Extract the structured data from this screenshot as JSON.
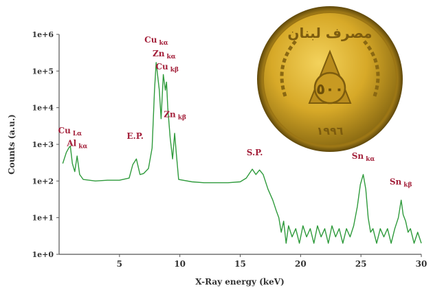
{
  "chart_data": {
    "type": "line",
    "title": "",
    "xlabel": "X-Ray energy (keV)",
    "ylabel": "Counts (a.u.)",
    "xlim": [
      0,
      30
    ],
    "ylim": [
      1,
      1000000
    ],
    "yscale": "log",
    "xticks": [
      5,
      10,
      15,
      20,
      25,
      30
    ],
    "yticks": [
      {
        "value": 1,
        "label": "1e+0"
      },
      {
        "value": 10,
        "label": "1e+1"
      },
      {
        "value": 100,
        "label": "1e+2"
      },
      {
        "value": 1000,
        "label": "1e+3"
      },
      {
        "value": 10000,
        "label": "1e+4"
      },
      {
        "value": 100000,
        "label": "1e+5"
      },
      {
        "value": 1000000,
        "label": "1e+6"
      }
    ],
    "grid": false,
    "series": [
      {
        "color": "#2e9a3b",
        "points": [
          [
            0.3,
            300
          ],
          [
            0.6,
            600
          ],
          [
            0.8,
            800
          ],
          [
            0.93,
            900
          ],
          [
            1.1,
            300
          ],
          [
            1.3,
            180
          ],
          [
            1.49,
            480
          ],
          [
            1.7,
            150
          ],
          [
            2.0,
            110
          ],
          [
            3.0,
            100
          ],
          [
            4.0,
            105
          ],
          [
            5.0,
            105
          ],
          [
            5.8,
            120
          ],
          [
            6.1,
            280
          ],
          [
            6.4,
            400
          ],
          [
            6.7,
            150
          ],
          [
            7.0,
            160
          ],
          [
            7.4,
            220
          ],
          [
            7.7,
            800
          ],
          [
            7.9,
            30000
          ],
          [
            8.04,
            170000
          ],
          [
            8.3,
            30000
          ],
          [
            8.45,
            5000
          ],
          [
            8.63,
            80000
          ],
          [
            8.8,
            30000
          ],
          [
            8.9,
            50000
          ],
          [
            9.0,
            10000
          ],
          [
            9.2,
            1500
          ],
          [
            9.4,
            400
          ],
          [
            9.57,
            2000
          ],
          [
            9.7,
            600
          ],
          [
            9.9,
            110
          ],
          [
            11.0,
            95
          ],
          [
            12.0,
            90
          ],
          [
            13.0,
            90
          ],
          [
            14.0,
            90
          ],
          [
            15.0,
            95
          ],
          [
            15.5,
            120
          ],
          [
            16.0,
            210
          ],
          [
            16.3,
            150
          ],
          [
            16.6,
            200
          ],
          [
            16.9,
            150
          ],
          [
            17.3,
            60
          ],
          [
            17.7,
            30
          ],
          [
            18.0,
            15
          ],
          [
            18.2,
            10
          ],
          [
            18.4,
            4
          ],
          [
            18.6,
            8
          ],
          [
            18.8,
            2
          ],
          [
            19.0,
            6
          ],
          [
            19.3,
            3
          ],
          [
            19.6,
            5
          ],
          [
            19.9,
            2
          ],
          [
            20.2,
            6
          ],
          [
            20.5,
            3
          ],
          [
            20.8,
            5
          ],
          [
            21.1,
            2
          ],
          [
            21.4,
            6
          ],
          [
            21.7,
            3
          ],
          [
            22.0,
            5
          ],
          [
            22.3,
            2
          ],
          [
            22.6,
            6
          ],
          [
            22.9,
            3
          ],
          [
            23.2,
            5
          ],
          [
            23.5,
            2
          ],
          [
            23.8,
            5
          ],
          [
            24.1,
            3
          ],
          [
            24.4,
            6
          ],
          [
            24.7,
            20
          ],
          [
            24.95,
            80
          ],
          [
            25.19,
            150
          ],
          [
            25.4,
            60
          ],
          [
            25.6,
            10
          ],
          [
            25.8,
            4
          ],
          [
            26.0,
            5
          ],
          [
            26.3,
            2
          ],
          [
            26.6,
            5
          ],
          [
            26.9,
            3
          ],
          [
            27.2,
            5
          ],
          [
            27.5,
            2
          ],
          [
            27.8,
            5
          ],
          [
            28.1,
            10
          ],
          [
            28.33,
            30
          ],
          [
            28.5,
            12
          ],
          [
            28.7,
            8
          ],
          [
            28.9,
            4
          ],
          [
            29.1,
            5
          ],
          [
            29.4,
            2
          ],
          [
            29.7,
            4
          ],
          [
            30.0,
            2
          ]
        ]
      }
    ],
    "annotations": [
      {
        "main": "Cu",
        "sub": "Lα",
        "x": 0.9,
        "y": 2000
      },
      {
        "main": "Al",
        "sub": "kα",
        "x": 1.5,
        "y": 900
      },
      {
        "main": "E.P.",
        "sub": "",
        "x": 6.3,
        "y": 1400
      },
      {
        "main": "Cu",
        "sub": "kα",
        "x": 8.05,
        "y": 600000
      },
      {
        "main": "Zn",
        "sub": "kα",
        "x": 8.7,
        "y": 250000
      },
      {
        "main": "Cu",
        "sub": "kβ",
        "x": 8.95,
        "y": 110000
      },
      {
        "main": "Zn",
        "sub": "kβ",
        "x": 9.6,
        "y": 5500
      },
      {
        "main": "S.P.",
        "sub": "",
        "x": 16.2,
        "y": 500
      },
      {
        "main": "Sn",
        "sub": "kα",
        "x": 25.19,
        "y": 400
      },
      {
        "main": "Sn",
        "sub": "kβ",
        "x": 28.3,
        "y": 80
      }
    ]
  },
  "coin": {
    "inscription_top": "مصرف لبنان",
    "denomination": "٥٠٠",
    "year": "١٩٩٦"
  }
}
